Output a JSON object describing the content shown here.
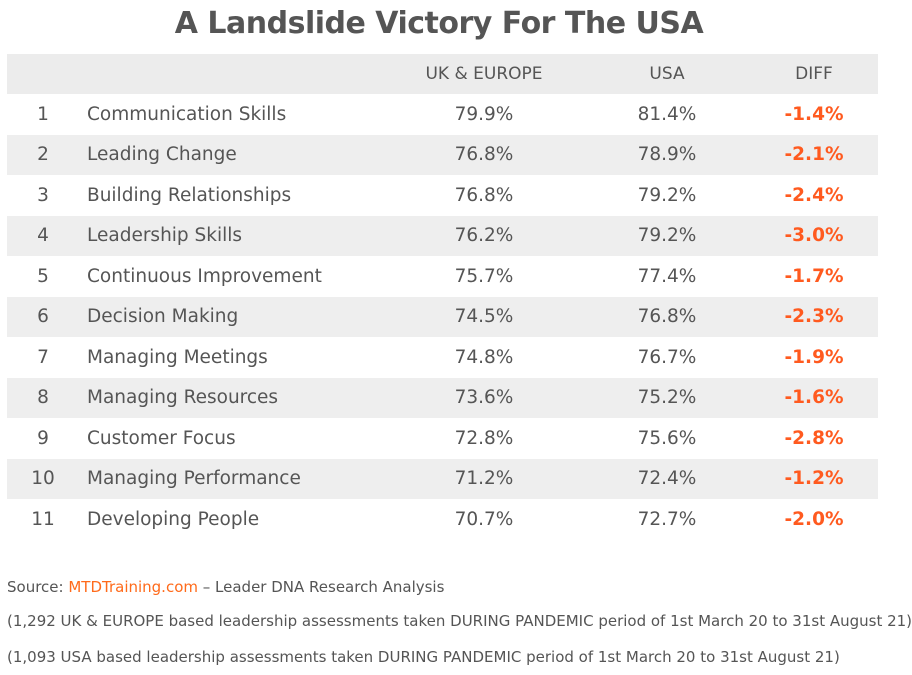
{
  "title": "A Landslide Victory For The USA",
  "headers": {
    "rank": "",
    "skill": "",
    "uk": "UK & EUROPE",
    "usa": "USA",
    "diff": "DIFF"
  },
  "chart_data": {
    "type": "table",
    "columns": [
      "",
      "",
      "UK & EUROPE",
      "USA",
      "DIFF"
    ],
    "rows": [
      {
        "rank": "1",
        "skill": "Communication Skills",
        "uk": "79.9%",
        "usa": "81.4%",
        "diff": "-1.4%"
      },
      {
        "rank": "2",
        "skill": "Leading Change",
        "uk": "76.8%",
        "usa": "78.9%",
        "diff": "-2.1%"
      },
      {
        "rank": "3",
        "skill": "Building Relationships",
        "uk": "76.8%",
        "usa": "79.2%",
        "diff": "-2.4%"
      },
      {
        "rank": "4",
        "skill": "Leadership Skills",
        "uk": "76.2%",
        "usa": "79.2%",
        "diff": "-3.0%"
      },
      {
        "rank": "5",
        "skill": "Continuous Improvement",
        "uk": "75.7%",
        "usa": "77.4%",
        "diff": "-1.7%"
      },
      {
        "rank": "6",
        "skill": "Decision Making",
        "uk": "74.5%",
        "usa": "76.8%",
        "diff": "-2.3%"
      },
      {
        "rank": "7",
        "skill": "Managing Meetings",
        "uk": "74.8%",
        "usa": "76.7%",
        "diff": "-1.9%"
      },
      {
        "rank": "8",
        "skill": "Managing Resources",
        "uk": "73.6%",
        "usa": "75.2%",
        "diff": "-1.6%"
      },
      {
        "rank": "9",
        "skill": "Customer Focus",
        "uk": "72.8%",
        "usa": "75.6%",
        "diff": "-2.8%"
      },
      {
        "rank": "10",
        "skill": "Managing Performance",
        "uk": "71.2%",
        "usa": "72.4%",
        "diff": "-1.2%"
      },
      {
        "rank": "11",
        "skill": "Developing People",
        "uk": "70.7%",
        "usa": "72.7%",
        "diff": "-2.0%"
      }
    ]
  },
  "footer": {
    "source_prefix": "Source: ",
    "source_link": "MTDTraining.com",
    "source_suffix": " – Leader DNA Research Analysis",
    "note_uk": "(1,292 UK & EUROPE based leadership assessments taken DURING PANDEMIC period of 1st March 20 to 31st August 21)",
    "note_usa": "(1,093 USA based leadership assessments taken DURING PANDEMIC period of 1st March 20 to 31st August 21)"
  },
  "colors": {
    "text": "#555555",
    "header_bg": "#ececec",
    "shade_bg": "#eeeeee",
    "diff": "#ff5a1f",
    "link": "#ff6a1a"
  }
}
